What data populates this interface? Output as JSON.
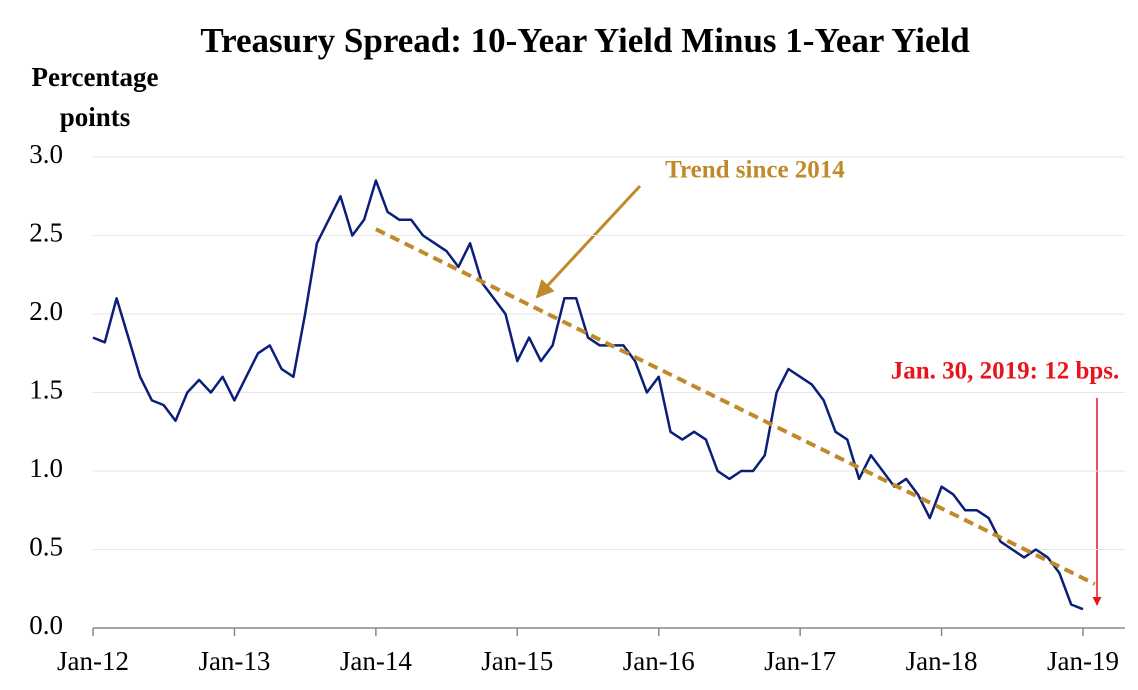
{
  "chart_data": {
    "type": "line",
    "title": "Treasury Spread: 10-Year Yield Minus 1-Year Yield",
    "ylabel": [
      "Percentage",
      "points"
    ],
    "x": [
      "2012-01",
      "2012-02",
      "2012-03",
      "2012-04",
      "2012-05",
      "2012-06",
      "2012-07",
      "2012-08",
      "2012-09",
      "2012-10",
      "2012-11",
      "2012-12",
      "2013-01",
      "2013-02",
      "2013-03",
      "2013-04",
      "2013-05",
      "2013-06",
      "2013-07",
      "2013-08",
      "2013-09",
      "2013-10",
      "2013-11",
      "2013-12",
      "2014-01",
      "2014-02",
      "2014-03",
      "2014-04",
      "2014-05",
      "2014-06",
      "2014-07",
      "2014-08",
      "2014-09",
      "2014-10",
      "2014-11",
      "2014-12",
      "2015-01",
      "2015-02",
      "2015-03",
      "2015-04",
      "2015-05",
      "2015-06",
      "2015-07",
      "2015-08",
      "2015-09",
      "2015-10",
      "2015-11",
      "2015-12",
      "2016-01",
      "2016-02",
      "2016-03",
      "2016-04",
      "2016-05",
      "2016-06",
      "2016-07",
      "2016-08",
      "2016-09",
      "2016-10",
      "2016-11",
      "2016-12",
      "2017-01",
      "2017-02",
      "2017-03",
      "2017-04",
      "2017-05",
      "2017-06",
      "2017-07",
      "2017-08",
      "2017-09",
      "2017-10",
      "2017-11",
      "2017-12",
      "2018-01",
      "2018-02",
      "2018-03",
      "2018-04",
      "2018-05",
      "2018-06",
      "2018-07",
      "2018-08",
      "2018-09",
      "2018-10",
      "2018-11",
      "2018-12",
      "2019-01"
    ],
    "series": [
      {
        "color": "#0a1f7a",
        "values": [
          1.85,
          1.82,
          2.1,
          1.85,
          1.6,
          1.45,
          1.42,
          1.32,
          1.5,
          1.58,
          1.5,
          1.6,
          1.45,
          1.6,
          1.75,
          1.8,
          1.65,
          1.6,
          2.0,
          2.45,
          2.6,
          2.75,
          2.5,
          2.6,
          2.85,
          2.65,
          2.6,
          2.6,
          2.5,
          2.45,
          2.4,
          2.3,
          2.45,
          2.2,
          2.1,
          2.0,
          1.7,
          1.85,
          1.7,
          1.8,
          2.1,
          2.1,
          1.85,
          1.8,
          1.8,
          1.8,
          1.7,
          1.5,
          1.6,
          1.25,
          1.2,
          1.25,
          1.2,
          1.0,
          0.95,
          1.0,
          1.0,
          1.1,
          1.5,
          1.65,
          1.6,
          1.55,
          1.45,
          1.25,
          1.2,
          0.95,
          1.1,
          1.0,
          0.9,
          0.95,
          0.85,
          0.7,
          0.9,
          0.85,
          0.75,
          0.75,
          0.7,
          0.55,
          0.5,
          0.45,
          0.5,
          0.45,
          0.35,
          0.15,
          0.12
        ]
      }
    ],
    "trend": {
      "x": [
        "2014-01",
        "2019-02"
      ],
      "values": [
        2.54,
        0.28
      ],
      "color": "#c08a2a",
      "label": "Trend since 2014"
    },
    "annotation": {
      "text": "Jan. 30, 2019: 12 bps.",
      "color": "#e8141b"
    },
    "xticks": [
      {
        "value": "2012-01",
        "label": "Jan-12"
      },
      {
        "value": "2013-01",
        "label": "Jan-13"
      },
      {
        "value": "2014-01",
        "label": "Jan-14"
      },
      {
        "value": "2015-01",
        "label": "Jan-15"
      },
      {
        "value": "2016-01",
        "label": "Jan-16"
      },
      {
        "value": "2017-01",
        "label": "Jan-17"
      },
      {
        "value": "2018-01",
        "label": "Jan-18"
      },
      {
        "value": "2019-01",
        "label": "Jan-19"
      }
    ],
    "ylim": [
      0,
      3
    ],
    "yticks": [
      {
        "value": 0,
        "label": "0.0"
      },
      {
        "value": 0.5,
        "label": "0.5"
      },
      {
        "value": 1,
        "label": "1.0"
      },
      {
        "value": 1.5,
        "label": "1.5"
      },
      {
        "value": 2,
        "label": "2.0"
      },
      {
        "value": 2.5,
        "label": "2.5"
      },
      {
        "value": 3,
        "label": "3.0"
      }
    ],
    "grid": true
  }
}
